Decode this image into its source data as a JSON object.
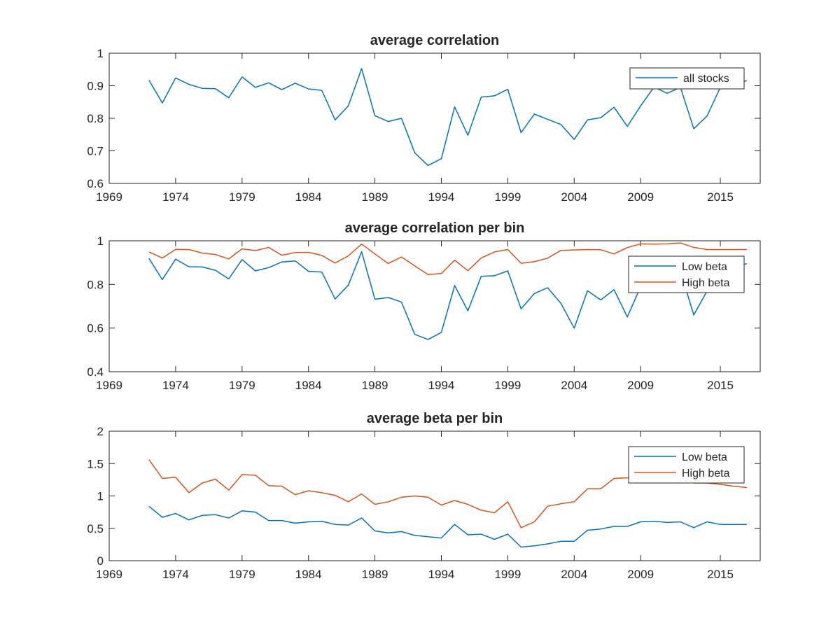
{
  "chart_data": [
    {
      "type": "line",
      "title": "average correlation",
      "xlabel": "",
      "ylabel": "",
      "xlim": [
        1969,
        2018
      ],
      "ylim": [
        0.6,
        1
      ],
      "xticks": [
        1969,
        1974,
        1979,
        1984,
        1989,
        1994,
        1999,
        2004,
        2009,
        2015
      ],
      "yticks": [
        0.6,
        0.7,
        0.8,
        0.9,
        1
      ],
      "ytick_labels": [
        "0.6",
        "0.7",
        "0.8",
        "0.9",
        "1"
      ],
      "grid": false,
      "legend_placement": "top-right",
      "x": [
        1972,
        1973,
        1974,
        1975,
        1976,
        1977,
        1978,
        1979,
        1980,
        1981,
        1982,
        1983,
        1984,
        1985,
        1986,
        1987,
        1988,
        1989,
        1990,
        1991,
        1992,
        1993,
        1994,
        1995,
        1996,
        1997,
        1998,
        1999,
        2000,
        2001,
        2002,
        2003,
        2004,
        2005,
        2006,
        2007,
        2008,
        2009,
        2010,
        2011,
        2012,
        2013,
        2014,
        2015,
        2016,
        2017
      ],
      "series": [
        {
          "name": "all stocks",
          "color": "#0072BD",
          "values": [
            0.917,
            0.847,
            0.924,
            0.904,
            0.892,
            0.891,
            0.863,
            0.927,
            0.895,
            0.909,
            0.888,
            0.908,
            0.89,
            0.886,
            0.795,
            0.838,
            0.953,
            0.808,
            0.79,
            0.8,
            0.694,
            0.655,
            0.676,
            0.835,
            0.748,
            0.865,
            0.869,
            0.889,
            0.756,
            0.813,
            0.797,
            0.781,
            0.735,
            0.795,
            0.802,
            0.834,
            0.775,
            0.838,
            0.896,
            0.877,
            0.895,
            0.768,
            0.807,
            0.895,
            0.91,
            0.915
          ]
        }
      ]
    },
    {
      "type": "line",
      "title": "average correlation per bin",
      "xlabel": "",
      "ylabel": "",
      "xlim": [
        1969,
        2018
      ],
      "ylim": [
        0.4,
        1
      ],
      "xticks": [
        1969,
        1974,
        1979,
        1984,
        1989,
        1994,
        1999,
        2004,
        2009,
        2015
      ],
      "yticks": [
        0.4,
        0.6,
        0.8,
        1
      ],
      "ytick_labels": [
        "0.4",
        "0.6",
        "0.8",
        "1"
      ],
      "grid": false,
      "legend_placement": "top-right",
      "x": [
        1972,
        1973,
        1974,
        1975,
        1976,
        1977,
        1978,
        1979,
        1980,
        1981,
        1982,
        1983,
        1984,
        1985,
        1986,
        1987,
        1988,
        1989,
        1990,
        1991,
        1992,
        1993,
        1994,
        1995,
        1996,
        1997,
        1998,
        1999,
        2000,
        2001,
        2002,
        2003,
        2004,
        2005,
        2006,
        2007,
        2008,
        2009,
        2010,
        2011,
        2012,
        2013,
        2014,
        2015,
        2016,
        2017
      ],
      "series": [
        {
          "name": "Low beta",
          "color": "#0072BD",
          "values": [
            0.919,
            0.822,
            0.916,
            0.881,
            0.88,
            0.865,
            0.825,
            0.914,
            0.862,
            0.877,
            0.903,
            0.908,
            0.86,
            0.857,
            0.733,
            0.797,
            0.95,
            0.732,
            0.74,
            0.719,
            0.571,
            0.548,
            0.58,
            0.795,
            0.679,
            0.837,
            0.84,
            0.862,
            0.688,
            0.758,
            0.785,
            0.713,
            0.6,
            0.771,
            0.729,
            0.776,
            0.651,
            0.79,
            0.85,
            0.83,
            0.86,
            0.66,
            0.77,
            0.85,
            0.88,
            0.895
          ]
        },
        {
          "name": "High beta",
          "color": "#D95319",
          "values": [
            0.949,
            0.921,
            0.961,
            0.96,
            0.944,
            0.937,
            0.917,
            0.963,
            0.955,
            0.97,
            0.934,
            0.946,
            0.947,
            0.933,
            0.898,
            0.931,
            0.985,
            0.94,
            0.896,
            0.926,
            0.885,
            0.845,
            0.85,
            0.911,
            0.863,
            0.921,
            0.949,
            0.96,
            0.897,
            0.904,
            0.92,
            0.956,
            0.958,
            0.96,
            0.959,
            0.94,
            0.969,
            0.986,
            0.985,
            0.986,
            0.99,
            0.97,
            0.96,
            0.96,
            0.96,
            0.96
          ]
        }
      ]
    },
    {
      "type": "line",
      "title": "average beta per bin",
      "xlabel": "",
      "ylabel": "",
      "xlim": [
        1969,
        2018
      ],
      "ylim": [
        0,
        2
      ],
      "xticks": [
        1969,
        1974,
        1979,
        1984,
        1989,
        1994,
        1999,
        2004,
        2009,
        2015
      ],
      "yticks": [
        0,
        0.5,
        1,
        1.5,
        2
      ],
      "ytick_labels": [
        "0",
        "0.5",
        "1",
        "1.5",
        "2"
      ],
      "grid": false,
      "legend_placement": "top-right",
      "x": [
        1972,
        1973,
        1974,
        1975,
        1976,
        1977,
        1978,
        1979,
        1980,
        1981,
        1982,
        1983,
        1984,
        1985,
        1986,
        1987,
        1988,
        1989,
        1990,
        1991,
        1992,
        1993,
        1994,
        1995,
        1996,
        1997,
        1998,
        1999,
        2000,
        2001,
        2002,
        2003,
        2004,
        2005,
        2006,
        2007,
        2008,
        2009,
        2010,
        2011,
        2012,
        2013,
        2014,
        2015,
        2016,
        2017
      ],
      "series": [
        {
          "name": "Low beta",
          "color": "#0072BD",
          "values": [
            0.84,
            0.67,
            0.73,
            0.63,
            0.7,
            0.71,
            0.66,
            0.77,
            0.75,
            0.62,
            0.62,
            0.58,
            0.6,
            0.61,
            0.56,
            0.55,
            0.66,
            0.46,
            0.43,
            0.45,
            0.39,
            0.37,
            0.35,
            0.56,
            0.4,
            0.41,
            0.33,
            0.41,
            0.21,
            0.23,
            0.26,
            0.3,
            0.3,
            0.47,
            0.49,
            0.53,
            0.53,
            0.6,
            0.61,
            0.59,
            0.6,
            0.51,
            0.6,
            0.56,
            0.56,
            0.56
          ]
        },
        {
          "name": "High beta",
          "color": "#D95319",
          "values": [
            1.56,
            1.27,
            1.29,
            1.05,
            1.2,
            1.26,
            1.09,
            1.33,
            1.32,
            1.16,
            1.15,
            1.02,
            1.08,
            1.05,
            1.01,
            0.91,
            1.03,
            0.87,
            0.91,
            0.98,
            1.0,
            0.98,
            0.86,
            0.93,
            0.87,
            0.78,
            0.74,
            0.91,
            0.51,
            0.6,
            0.84,
            0.88,
            0.91,
            1.11,
            1.11,
            1.27,
            1.28,
            1.3,
            1.34,
            1.29,
            1.25,
            1.2,
            1.2,
            1.18,
            1.15,
            1.13
          ]
        }
      ]
    }
  ]
}
